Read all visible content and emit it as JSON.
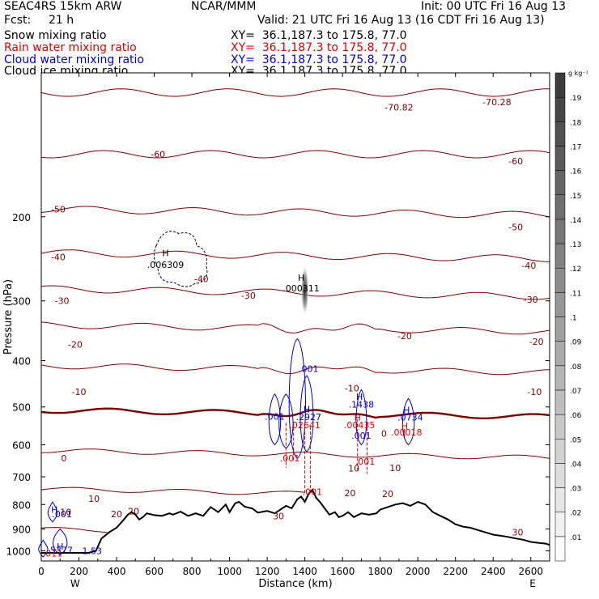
{
  "header": {
    "model": "SEAC4RS 15km ARW",
    "center": "NCAR/MMM",
    "init": "Init: 00 UTC Fri 16 Aug 13",
    "fcst_label": "Fcst:",
    "fcst_value": "21 h",
    "valid": "Valid: 21 UTC Fri 16 Aug 13 (16 CDT Fri 16 Aug 13)"
  },
  "fields": [
    {
      "name": "Snow mixing ratio",
      "xy": "XY=  36.1,187.3 to 175.8, 77.0",
      "color": "#000000"
    },
    {
      "name": "Rain water mixing ratio",
      "xy": "XY=  36.1,187.3 to 175.8, 77.0",
      "color": "#dd0000"
    },
    {
      "name": "Cloud water mixing ratio",
      "xy": "XY=  36.1,187.3 to 175.8, 77.0",
      "color": "#0000cc"
    },
    {
      "name": "Cloud ice mixing ratio",
      "xy": "XY=  36.1,187.3 to 175.8, 77.0",
      "color": "#000000"
    }
  ],
  "chart_data": {
    "type": "cross-section",
    "xlabel": "Distance (km)",
    "ylabel": "Pressure (hPa)",
    "x_ticks": [
      0,
      200,
      400,
      600,
      800,
      1000,
      1200,
      1400,
      1600,
      1800,
      2000,
      2200,
      2400,
      2600
    ],
    "y_ticks": [
      200,
      300,
      400,
      500,
      600,
      700,
      800,
      900,
      1000
    ],
    "xlim": [
      0,
      2700
    ],
    "ylim": [
      1050,
      100
    ],
    "y_scale": "log",
    "x_end_labels": {
      "left": "W",
      "right": "E"
    },
    "colorbar": {
      "unit": "g kg⁻¹",
      "levels": [
        ".01",
        ".02",
        ".03",
        ".04",
        ".05",
        ".06",
        ".07",
        ".08",
        ".09",
        ".1",
        ".11",
        ".12",
        ".13",
        ".14",
        ".15",
        ".16",
        ".17",
        ".18",
        ".19"
      ],
      "colors": [
        "#fafafa",
        "#f0f0f0",
        "#e6e6e6",
        "#dcdcdc",
        "#d2d2d2",
        "#c8c8c8",
        "#bebebe",
        "#b4b4b4",
        "#aaaaaa",
        "#a0a0a0",
        "#969696",
        "#8c8c8c",
        "#828282",
        "#787878",
        "#6e6e6e",
        "#646464",
        "#5a5a5a",
        "#505050",
        "#464646",
        "#3c3c3c"
      ]
    },
    "temperature_contours": {
      "color": "#800000",
      "zero_color": "#7a0000",
      "levels": [
        -70,
        -60,
        -50,
        -40,
        -30,
        -20,
        -10,
        0,
        10,
        20,
        30
      ],
      "pressure_at_left": [
        110,
        148,
        193,
        238,
        283,
        337,
        410,
        508,
        617,
        742,
        900
      ],
      "slope": [
        0,
        0,
        0.2,
        0.25,
        0.4,
        0.4,
        0.5,
        0.6,
        0.8,
        1.2,
        2.0
      ],
      "labels": [
        {
          "text": "-70.82",
          "x": 1900,
          "p": 118
        },
        {
          "text": "-70.28",
          "x": 2420,
          "p": 115
        },
        {
          "text": "-60",
          "x": 620,
          "p": 148
        },
        {
          "text": "-60",
          "x": 2520,
          "p": 153
        },
        {
          "text": "-50",
          "x": 90,
          "p": 193
        },
        {
          "text": "-50",
          "x": 2520,
          "p": 210
        },
        {
          "text": "-40",
          "x": 90,
          "p": 243
        },
        {
          "text": "-40",
          "x": 850,
          "p": 270
        },
        {
          "text": "-40",
          "x": 2590,
          "p": 253
        },
        {
          "text": "-30",
          "x": 110,
          "p": 300
        },
        {
          "text": "-30",
          "x": 1100,
          "p": 292
        },
        {
          "text": "-30",
          "x": 2600,
          "p": 298
        },
        {
          "text": "-20",
          "x": 180,
          "p": 370
        },
        {
          "text": "-20",
          "x": 1930,
          "p": 355
        },
        {
          "text": "-20",
          "x": 2630,
          "p": 365
        },
        {
          "text": "-10",
          "x": 200,
          "p": 465
        },
        {
          "text": "-10",
          "x": 2620,
          "p": 465
        },
        {
          "text": "-10",
          "x": 1650,
          "p": 457
        },
        {
          "text": "0",
          "x": 120,
          "p": 640
        },
        {
          "text": "0",
          "x": 1820,
          "p": 568
        },
        {
          "text": "10",
          "x": 1660,
          "p": 672
        },
        {
          "text": "10",
          "x": 1880,
          "p": 670
        },
        {
          "text": "10",
          "x": 280,
          "p": 778
        },
        {
          "text": "10",
          "x": 130,
          "p": 830
        },
        {
          "text": "20",
          "x": 1640,
          "p": 757
        },
        {
          "text": "20",
          "x": 1840,
          "p": 760
        },
        {
          "text": "20",
          "x": 490,
          "p": 826
        },
        {
          "text": "20",
          "x": 400,
          "p": 837
        },
        {
          "text": "30",
          "x": 1260,
          "p": 845
        },
        {
          "text": "30",
          "x": 2530,
          "p": 915
        }
      ]
    },
    "terrain": [
      [
        0,
        1010
      ],
      [
        250,
        1010
      ],
      [
        290,
        1000
      ],
      [
        320,
        942
      ],
      [
        360,
        915
      ],
      [
        400,
        895
      ],
      [
        430,
        868
      ],
      [
        460,
        840
      ],
      [
        480,
        830
      ],
      [
        500,
        840
      ],
      [
        520,
        860
      ],
      [
        540,
        850
      ],
      [
        560,
        835
      ],
      [
        600,
        842
      ],
      [
        640,
        845
      ],
      [
        680,
        835
      ],
      [
        700,
        840
      ],
      [
        740,
        828
      ],
      [
        780,
        845
      ],
      [
        820,
        835
      ],
      [
        860,
        845
      ],
      [
        900,
        810
      ],
      [
        940,
        830
      ],
      [
        980,
        800
      ],
      [
        1000,
        830
      ],
      [
        1030,
        795
      ],
      [
        1050,
        790
      ],
      [
        1080,
        808
      ],
      [
        1100,
        812
      ],
      [
        1120,
        815
      ],
      [
        1150,
        832
      ],
      [
        1200,
        825
      ],
      [
        1240,
        835
      ],
      [
        1270,
        820
      ],
      [
        1300,
        805
      ],
      [
        1330,
        815
      ],
      [
        1360,
        780
      ],
      [
        1380,
        770
      ],
      [
        1400,
        790
      ],
      [
        1420,
        760
      ],
      [
        1440,
        745
      ],
      [
        1460,
        775
      ],
      [
        1480,
        790
      ],
      [
        1500,
        810
      ],
      [
        1530,
        840
      ],
      [
        1560,
        830
      ],
      [
        1580,
        850
      ],
      [
        1600,
        845
      ],
      [
        1630,
        830
      ],
      [
        1660,
        850
      ],
      [
        1700,
        835
      ],
      [
        1740,
        840
      ],
      [
        1780,
        835
      ],
      [
        1800,
        820
      ],
      [
        1840,
        810
      ],
      [
        1880,
        800
      ],
      [
        1920,
        795
      ],
      [
        1960,
        805
      ],
      [
        2000,
        790
      ],
      [
        2040,
        800
      ],
      [
        2080,
        830
      ],
      [
        2120,
        845
      ],
      [
        2160,
        860
      ],
      [
        2200,
        880
      ],
      [
        2240,
        890
      ],
      [
        2280,
        895
      ],
      [
        2320,
        905
      ],
      [
        2360,
        915
      ],
      [
        2400,
        925
      ],
      [
        2440,
        930
      ],
      [
        2480,
        935
      ],
      [
        2520,
        942
      ],
      [
        2560,
        948
      ],
      [
        2600,
        958
      ],
      [
        2640,
        962
      ],
      [
        2680,
        966
      ],
      [
        2700,
        972
      ]
    ],
    "annotations": [
      {
        "text": "H",
        "x": 660,
        "p": 238,
        "color": "#000000"
      },
      {
        "text": ".006309",
        "x": 660,
        "p": 252,
        "color": "#000000"
      },
      {
        "text": "H",
        "x": 1380,
        "p": 268,
        "color": "#000000"
      },
      {
        "text": ".000311",
        "x": 1380,
        "p": 282,
        "color": "#000000"
      },
      {
        "text": ".001",
        "x": 1420,
        "p": 416,
        "color": "#0000cc"
      },
      {
        "text": "H",
        "x": 1410,
        "p": 505,
        "color": "#0000cc"
      },
      {
        "text": ".2927",
        "x": 1420,
        "p": 524,
        "color": "#0000cc"
      },
      {
        "text": ".001",
        "x": 1240,
        "p": 523,
        "color": "#0000cc"
      },
      {
        "text": ".02641",
        "x": 1400,
        "p": 545,
        "color": "#dd0000"
      },
      {
        "text": "H",
        "x": 1690,
        "p": 476,
        "color": "#0000cc"
      },
      {
        "text": ".1438",
        "x": 1700,
        "p": 494,
        "color": "#0000cc"
      },
      {
        "text": "H",
        "x": 1680,
        "p": 526,
        "color": "#dd0000"
      },
      {
        "text": ".00435",
        "x": 1690,
        "p": 545,
        "color": "#dd0000"
      },
      {
        "text": ".001",
        "x": 1700,
        "p": 574,
        "color": "#0000cc"
      },
      {
        "text": "H",
        "x": 1940,
        "p": 507,
        "color": "#0000cc"
      },
      {
        "text": ".0734",
        "x": 1960,
        "p": 526,
        "color": "#0000cc"
      },
      {
        "text": "H",
        "x": 1930,
        "p": 548,
        "color": "#dd0000"
      },
      {
        "text": ".00018",
        "x": 1940,
        "p": 565,
        "color": "#dd0000"
      },
      {
        "text": ".001",
        "x": 1320,
        "p": 640,
        "color": "#dd0000"
      },
      {
        "text": ".001",
        "x": 1720,
        "p": 650,
        "color": "#dd0000"
      },
      {
        "text": ".001",
        "x": 1440,
        "p": 752,
        "color": "#dd0000"
      },
      {
        "text": "H",
        "x": 70,
        "p": 820,
        "color": "#0000cc"
      },
      {
        "text": ".001",
        "x": 110,
        "p": 838,
        "color": "#0000cc"
      },
      {
        "text": "H",
        "x": 100,
        "p": 978,
        "color": "#0000cc"
      },
      {
        "text": ".5377",
        "x": 100,
        "p": 997,
        "color": "#0000cc"
      },
      {
        "text": "1.53",
        "x": 270,
        "p": 1000,
        "color": "#0000cc"
      },
      {
        "text": ".011",
        "x": 60,
        "p": 1012,
        "color": "#dd0000"
      }
    ]
  }
}
